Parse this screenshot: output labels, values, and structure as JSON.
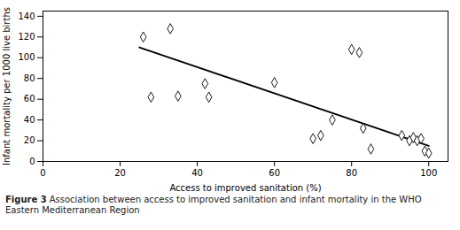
{
  "chart_data": {
    "type": "scatter",
    "xlabel": "Access to improved sanitation (%)",
    "ylabel": "Infant mortality per 1000 live births",
    "x": [
      26,
      28,
      33,
      35,
      42,
      43,
      60,
      70,
      72,
      75,
      80,
      82,
      83,
      85,
      93,
      95,
      96,
      97,
      98,
      99,
      100
    ],
    "values": [
      120,
      62,
      128,
      63,
      75,
      62,
      76,
      22,
      25,
      40,
      108,
      105,
      32,
      12,
      25,
      20,
      23,
      20,
      22,
      10,
      8
    ],
    "trendline": {
      "x": [
        25,
        100
      ],
      "values": [
        110,
        15
      ]
    },
    "xlim": [
      0,
      105
    ],
    "ylim": [
      0,
      145
    ],
    "xticks": [
      0,
      20,
      40,
      60,
      80,
      100
    ],
    "yticks": [
      0,
      20,
      40,
      60,
      80,
      100,
      120,
      140
    ],
    "grid": false,
    "marker": "diamond",
    "caption_bold": "Figure 3",
    "caption": "Association between access to improved sanitation and infant mortality in the WHO\nEastern Mediterranean Region"
  }
}
